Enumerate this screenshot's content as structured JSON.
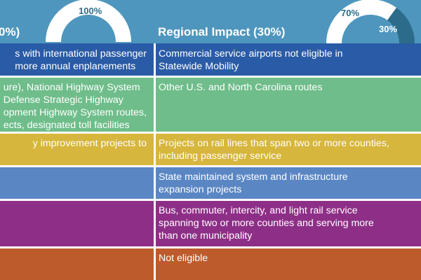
{
  "header": {
    "left_title": "0%)",
    "right_title": "Regional Impact (30%)"
  },
  "gauges": [
    {
      "name": "statewide",
      "label": "100%",
      "value_pct": 100
    },
    {
      "name": "regional",
      "segments": [
        {
          "label": "70%",
          "value_pct": 70,
          "color": "#ffffff"
        },
        {
          "label": "30%",
          "value_pct": 30,
          "color": "#2c6b8a"
        }
      ]
    }
  ],
  "colors": {
    "header": "#4e96bd",
    "aviation": "#2a5ba6",
    "highway": "#6fbd8a",
    "rail": "#d6b63c",
    "ferry": "#5a86c4",
    "transit": "#8e2f87",
    "bike_ped": "#bd5b2c"
  },
  "rows": [
    {
      "name": "aviation",
      "left": [
        "s with international passenger",
        "more annual enplanements"
      ],
      "right": [
        "Commercial service airports not eligible in",
        "Statewide Mobility"
      ]
    },
    {
      "name": "highway",
      "left": [
        "ure), National Highway System",
        "Defense Strategic Highway",
        "opment Highway System routes,",
        "ects, designated toll facilities"
      ],
      "right": [
        "Other U.S. and North Carolina routes"
      ]
    },
    {
      "name": "rail",
      "left": [
        "y improvement projects to"
      ],
      "right": [
        "Projects on rail lines that span two or more counties,",
        "including passenger service"
      ]
    },
    {
      "name": "ferry",
      "left": [],
      "right": [
        "State maintained system and infrastructure",
        "expansion projects"
      ]
    },
    {
      "name": "transit",
      "left": [],
      "right": [
        "Bus, commuter, intercity, and light rail service",
        "spanning two or more counties and serving more",
        "than one municipality"
      ]
    },
    {
      "name": "bike-ped",
      "left": [],
      "right": [
        "Not eligible"
      ]
    }
  ]
}
